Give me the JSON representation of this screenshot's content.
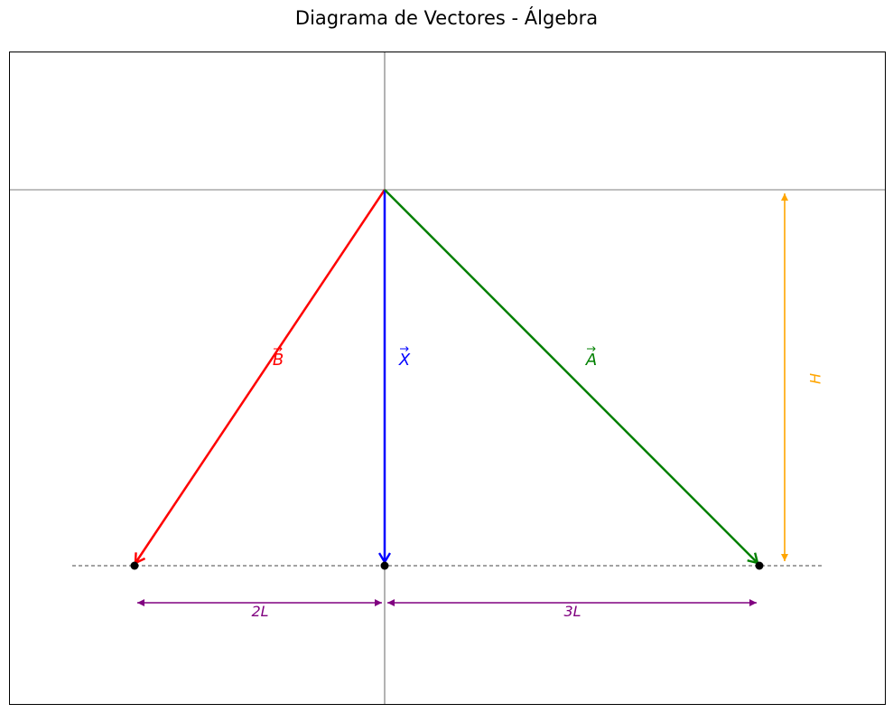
{
  "title": "Diagrama de Vectores - Álgebra",
  "vectors": [
    {
      "id": "B",
      "label": "B",
      "color": "#ff0000"
    },
    {
      "id": "X",
      "label": "X",
      "color": "#0000ff"
    },
    {
      "id": "A",
      "label": "A",
      "color": "#008000"
    }
  ],
  "dimensions": {
    "left_span": {
      "label": "2L",
      "color": "#800080"
    },
    "right_span": {
      "label": "3L",
      "color": "#800080"
    },
    "height": {
      "label": "H",
      "color": "#ffa500"
    }
  },
  "colors": {
    "axes": "#000000",
    "baseline": "#444444",
    "points": "#000000"
  }
}
